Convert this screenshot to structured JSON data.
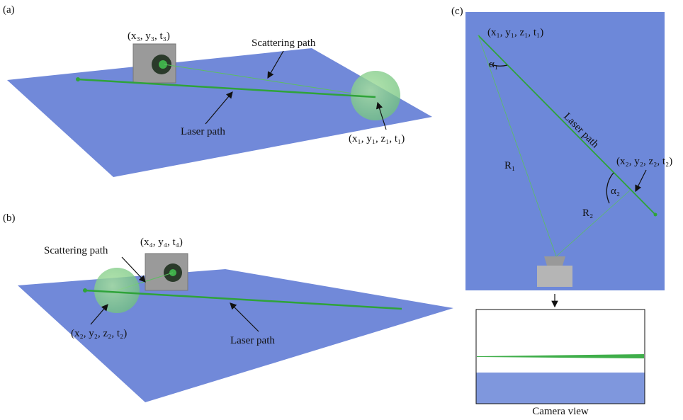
{
  "panels": [
    {
      "label": "(a)",
      "camera_point": "(x₃, y₃, t₃)",
      "scattering_label": "Scattering path",
      "laser_label": "Laser path",
      "sphere_point": "(x₁, y₁, z₁, t₁)"
    },
    {
      "label": "(b)",
      "camera_point": "(x₄, y₄, t₄)",
      "scattering_label": "Scattering path",
      "laser_label": "Laser path",
      "sphere_point": "(x₂, y₂, z₂, t₂)"
    },
    {
      "label": "(c)",
      "point_1": "(x₁, y₁, z₁, t₁)",
      "angle_1": "α₁",
      "laser_label": "Laser path",
      "point_2": "(x₂, y₂, z₂, t₂)",
      "angle_2": "α₂",
      "range_1": "R₁",
      "range_2": "R₂",
      "camera_view_label": "Camera view"
    }
  ]
}
